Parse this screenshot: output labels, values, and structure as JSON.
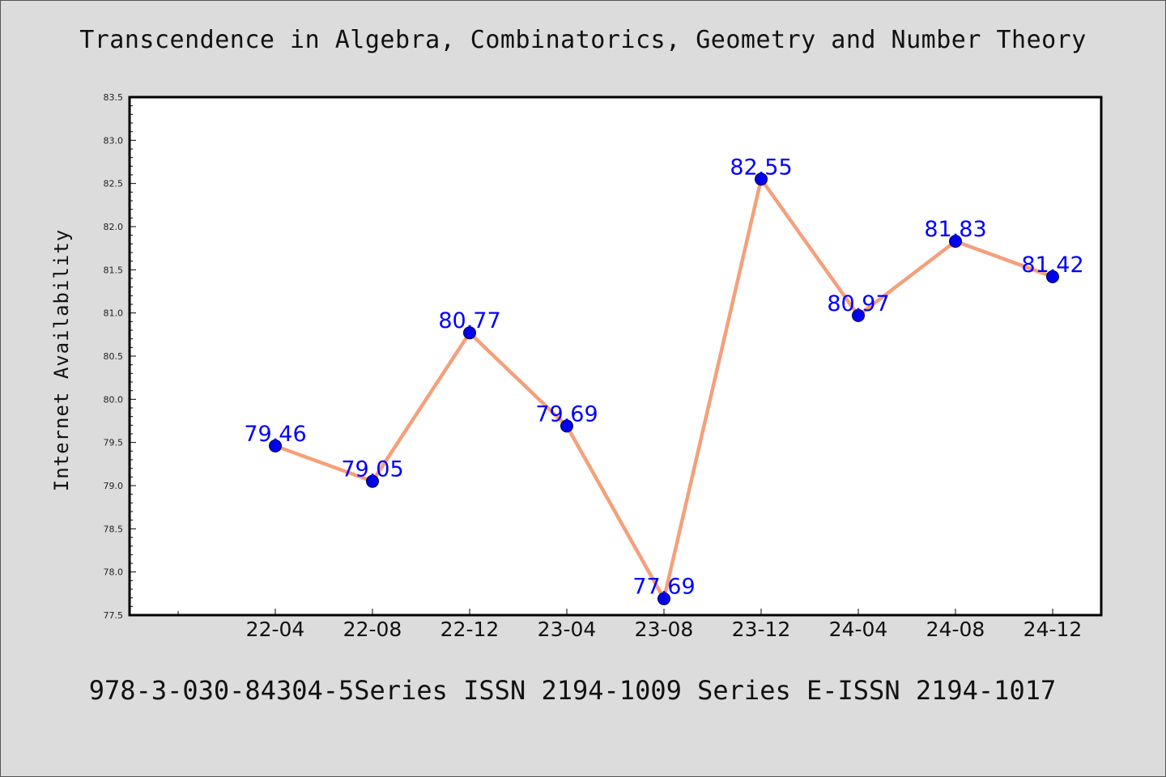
{
  "title": "Transcendence in Algebra, Combinatorics, Geometry and Number Theory",
  "caption": "978-3-030-84304-5Series ISSN 2194-1009 Series E-ISSN 2194-1017",
  "colors": {
    "background": "#dcdcdc",
    "plot_background": "#ffffff",
    "line": "#f4a07c",
    "marker": "#0000ee",
    "data_label": "#0000ff"
  },
  "chart_data": {
    "type": "line",
    "title": "Transcendence in Algebra, Combinatorics, Geometry and Number Theory",
    "xlabel": "",
    "ylabel": "Internet Availability",
    "categories": [
      "22-04",
      "22-08",
      "22-12",
      "23-04",
      "23-08",
      "23-12",
      "24-04",
      "24-08",
      "24-12"
    ],
    "values": [
      79.46,
      79.05,
      80.77,
      79.69,
      77.69,
      82.55,
      80.97,
      81.83,
      81.42
    ],
    "ylim": [
      77.5,
      83.5
    ],
    "yticks": [
      "77.5",
      "78.0",
      "78.5",
      "79.0",
      "79.5",
      "80.0",
      "80.5",
      "81.0",
      "81.5",
      "82.0",
      "82.5",
      "83.0",
      "83.5"
    ],
    "data_labels": [
      "79.46",
      "79.05",
      "80.77",
      "79.69",
      "77.69",
      "82.55",
      "80.97",
      "81.83",
      "81.42"
    ],
    "grid": false,
    "legend": "none",
    "marker": "circle"
  }
}
